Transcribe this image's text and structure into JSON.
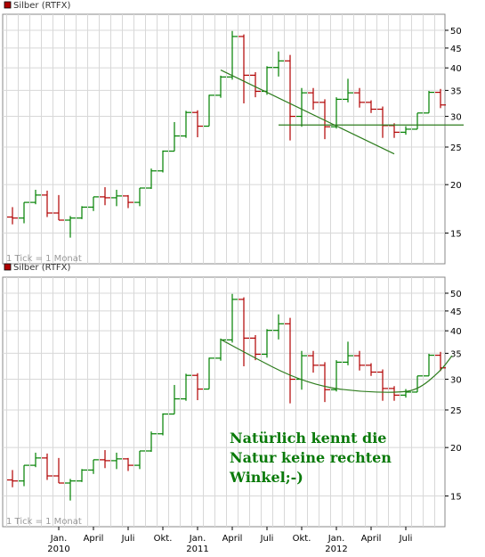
{
  "colors": {
    "up": "#008000",
    "down": "#b00000",
    "grid": "#d8d8d8",
    "border": "#888888",
    "legend_swatch": "#b00000",
    "annotation": "#0a7a0a",
    "trendline": "#2e7d1e"
  },
  "chart_data": [
    {
      "type": "ohlc",
      "series_name": "Silber (RTFX)",
      "footnote": "1 Tick = 1 Monat",
      "y_scale": "log",
      "ylim": [
        12.5,
        55
      ],
      "y_ticks": [
        15,
        20,
        25,
        30,
        35,
        40,
        45,
        50
      ],
      "x_tick_labels": [],
      "grid": true,
      "legend_position": "top-left",
      "candles": [
        {
          "m": "2009-09",
          "o": 16.5,
          "h": 17.5,
          "l": 15.8,
          "c": 16.4
        },
        {
          "m": "2009-10",
          "o": 16.4,
          "h": 18.0,
          "l": 15.9,
          "c": 18.0
        },
        {
          "m": "2009-11",
          "o": 18.0,
          "h": 19.4,
          "l": 17.8,
          "c": 18.8
        },
        {
          "m": "2009-12",
          "o": 18.8,
          "h": 19.3,
          "l": 16.5,
          "c": 16.9
        },
        {
          "m": "2010-01",
          "o": 16.9,
          "h": 18.8,
          "l": 16.2,
          "c": 16.2
        },
        {
          "m": "2010-02",
          "o": 16.2,
          "h": 16.6,
          "l": 14.6,
          "c": 16.4
        },
        {
          "m": "2010-03",
          "o": 16.4,
          "h": 17.6,
          "l": 16.3,
          "c": 17.5
        },
        {
          "m": "2010-04",
          "o": 17.5,
          "h": 18.6,
          "l": 17.1,
          "c": 18.6
        },
        {
          "m": "2010-05",
          "o": 18.6,
          "h": 19.7,
          "l": 17.7,
          "c": 18.5
        },
        {
          "m": "2010-06",
          "o": 18.5,
          "h": 19.4,
          "l": 17.6,
          "c": 18.7
        },
        {
          "m": "2010-07",
          "o": 18.7,
          "h": 18.8,
          "l": 17.4,
          "c": 18.0
        },
        {
          "m": "2010-08",
          "o": 18.0,
          "h": 19.6,
          "l": 17.6,
          "c": 19.6
        },
        {
          "m": "2010-09",
          "o": 19.6,
          "h": 22.0,
          "l": 19.5,
          "c": 21.7
        },
        {
          "m": "2010-10",
          "o": 21.7,
          "h": 24.5,
          "l": 21.5,
          "c": 24.4
        },
        {
          "m": "2010-11",
          "o": 24.4,
          "h": 29.0,
          "l": 24.4,
          "c": 26.7
        },
        {
          "m": "2010-12",
          "o": 26.7,
          "h": 31.0,
          "l": 26.4,
          "c": 30.7
        },
        {
          "m": "2011-01",
          "o": 30.7,
          "h": 31.1,
          "l": 26.5,
          "c": 28.3
        },
        {
          "m": "2011-02",
          "o": 28.3,
          "h": 34.1,
          "l": 28.3,
          "c": 34.0
        },
        {
          "m": "2011-03",
          "o": 34.0,
          "h": 38.2,
          "l": 33.5,
          "c": 37.9
        },
        {
          "m": "2011-04",
          "o": 37.9,
          "h": 49.8,
          "l": 37.3,
          "c": 48.2
        },
        {
          "m": "2011-05",
          "o": 48.2,
          "h": 48.8,
          "l": 32.4,
          "c": 38.3
        },
        {
          "m": "2011-06",
          "o": 38.3,
          "h": 39.0,
          "l": 33.6,
          "c": 34.8
        },
        {
          "m": "2011-07",
          "o": 34.8,
          "h": 40.4,
          "l": 34.1,
          "c": 40.1
        },
        {
          "m": "2011-08",
          "o": 40.1,
          "h": 44.1,
          "l": 38.0,
          "c": 41.7
        },
        {
          "m": "2011-09",
          "o": 41.7,
          "h": 43.2,
          "l": 26.0,
          "c": 30.0
        },
        {
          "m": "2011-10",
          "o": 30.0,
          "h": 35.5,
          "l": 28.2,
          "c": 34.5
        },
        {
          "m": "2011-11",
          "o": 34.5,
          "h": 35.5,
          "l": 31.2,
          "c": 32.6
        },
        {
          "m": "2011-12",
          "o": 32.6,
          "h": 33.2,
          "l": 26.2,
          "c": 28.2
        },
        {
          "m": "2012-01",
          "o": 28.2,
          "h": 33.6,
          "l": 27.9,
          "c": 33.2
        },
        {
          "m": "2012-02",
          "o": 33.2,
          "h": 37.5,
          "l": 32.6,
          "c": 34.5
        },
        {
          "m": "2012-03",
          "o": 34.5,
          "h": 35.5,
          "l": 31.6,
          "c": 32.6
        },
        {
          "m": "2012-04",
          "o": 32.6,
          "h": 33.0,
          "l": 30.6,
          "c": 31.3
        },
        {
          "m": "2012-05",
          "o": 31.3,
          "h": 31.8,
          "l": 26.4,
          "c": 28.4
        },
        {
          "m": "2012-06",
          "o": 28.4,
          "h": 28.8,
          "l": 26.4,
          "c": 27.3
        },
        {
          "m": "2012-07",
          "o": 27.3,
          "h": 28.3,
          "l": 26.9,
          "c": 27.8
        },
        {
          "m": "2012-08",
          "o": 27.8,
          "h": 30.6,
          "l": 27.8,
          "c": 30.6
        },
        {
          "m": "2012-09",
          "o": 30.6,
          "h": 34.9,
          "l": 30.6,
          "c": 34.6
        },
        {
          "m": "2012-10",
          "o": 34.6,
          "h": 35.3,
          "l": 31.5,
          "c": 32.1
        }
      ],
      "trendlines": [
        {
          "from": {
            "m": "2011-03",
            "v": 39.5
          },
          "to": {
            "m": "2012-06",
            "v": 24.0
          }
        },
        {
          "from": {
            "m": "2011-08",
            "v": 28.5
          },
          "to": {
            "m": "2012-12",
            "v": 28.5
          }
        }
      ]
    },
    {
      "type": "ohlc",
      "series_name": "Silber (RTFX)",
      "footnote": "1 Tick = 1 Monat",
      "y_scale": "log",
      "ylim": [
        12.5,
        55
      ],
      "y_ticks": [
        15,
        20,
        25,
        30,
        35,
        40,
        45,
        50
      ],
      "x_tick_labels": [
        {
          "m": "2010-01",
          "label": "Jan.",
          "year": "2010"
        },
        {
          "m": "2010-04",
          "label": "April",
          "year": ""
        },
        {
          "m": "2010-07",
          "label": "Juli",
          "year": ""
        },
        {
          "m": "2010-10",
          "label": "Okt.",
          "year": ""
        },
        {
          "m": "2011-01",
          "label": "Jan.",
          "year": "2011"
        },
        {
          "m": "2011-04",
          "label": "April",
          "year": ""
        },
        {
          "m": "2011-07",
          "label": "Juli",
          "year": ""
        },
        {
          "m": "2011-10",
          "label": "Okt.",
          "year": ""
        },
        {
          "m": "2012-01",
          "label": "Jan.",
          "year": "2012"
        },
        {
          "m": "2012-04",
          "label": "April",
          "year": ""
        },
        {
          "m": "2012-07",
          "label": "Juli",
          "year": ""
        }
      ],
      "grid": true,
      "legend_position": "top-left",
      "candles": "same as chart 1",
      "curve": [
        {
          "m": "2011-03",
          "v": 38.0
        },
        {
          "m": "2011-06",
          "v": 34.0
        },
        {
          "m": "2011-09",
          "v": 30.6
        },
        {
          "m": "2011-12",
          "v": 28.6
        },
        {
          "m": "2012-03",
          "v": 27.9
        },
        {
          "m": "2012-06",
          "v": 27.7
        },
        {
          "m": "2012-08",
          "v": 28.1
        },
        {
          "m": "2012-10",
          "v": 31.5
        },
        {
          "m": "2012-11",
          "v": 34.5
        }
      ],
      "annotation_lines": [
        "Natürlich kennt die",
        "Natur keine rechten",
        "Winkel;-)"
      ]
    }
  ]
}
